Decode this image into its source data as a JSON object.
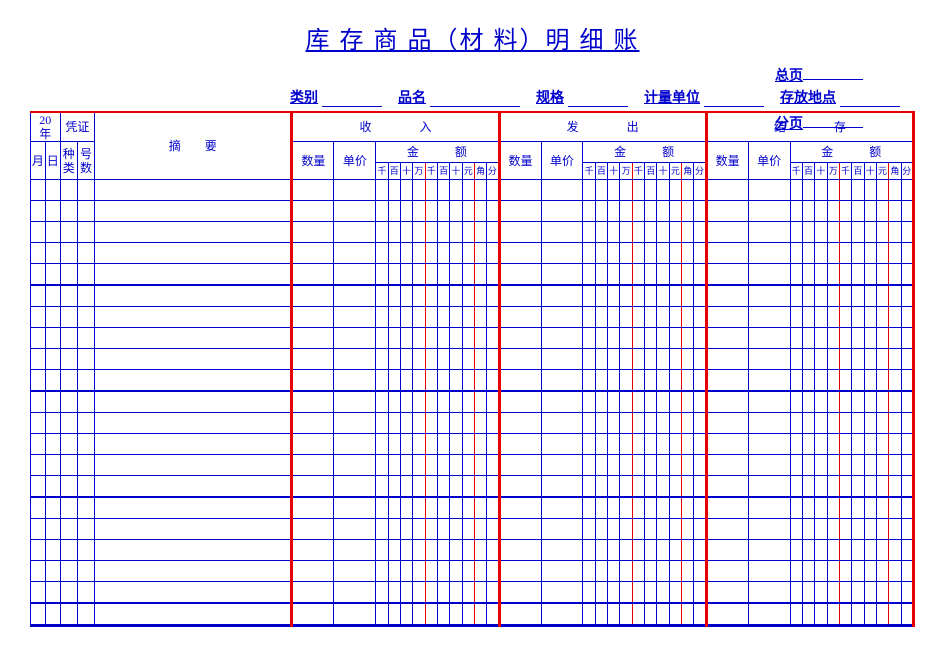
{
  "title": "库 存 商 品（材 料）明 细 账",
  "top_right": {
    "total_page": "总页",
    "sub_page": "分页"
  },
  "fields": {
    "category": "类别",
    "name": "品名",
    "spec": "规格",
    "unit": "计量单位",
    "location": "存放地点"
  },
  "header": {
    "year_prefix": "20",
    "year_label": "年",
    "voucher": "凭证",
    "month": "月",
    "day": "日",
    "vtype": "种类",
    "vnum": "号数",
    "summary": "摘　　要",
    "sections": {
      "in": "收　　　　入",
      "out": "发　　　　出",
      "bal": "结　　　　存"
    },
    "qty": "数量",
    "price": "单价",
    "amount": "金　　　额",
    "digits": [
      "千",
      "百",
      "十",
      "万",
      "千",
      "百",
      "十",
      "元",
      "角",
      "分"
    ]
  },
  "body_row_count": 21,
  "bold_every": 5,
  "colors": {
    "ink": "#0000cc",
    "red": "#e60000",
    "bg": "#ffffff"
  }
}
